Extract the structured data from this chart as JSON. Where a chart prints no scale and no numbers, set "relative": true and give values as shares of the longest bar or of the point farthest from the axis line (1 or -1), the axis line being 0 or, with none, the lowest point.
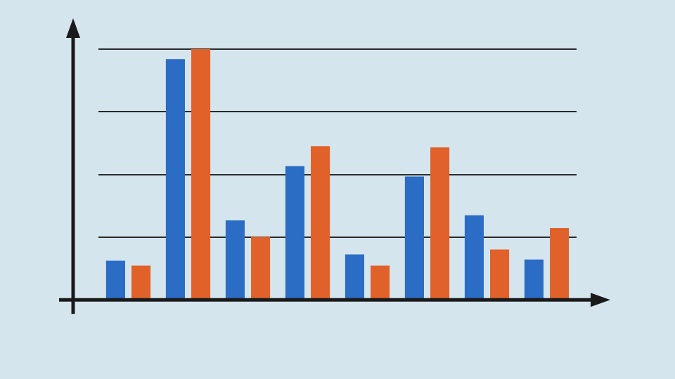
{
  "chart_data": {
    "type": "bar",
    "relative": true,
    "categories": [
      null,
      null,
      null,
      null,
      null,
      null,
      null,
      null
    ],
    "grid": "y",
    "legend": false,
    "series": [
      {
        "color": "#2b6cc4",
        "values": [
          0.156,
          0.96,
          0.317,
          0.533,
          0.181,
          0.492,
          0.337,
          0.161
        ]
      },
      {
        "color": "#e0622a",
        "values": [
          0.136,
          1,
          0.251,
          0.613,
          0.136,
          0.608,
          0.201,
          0.286
        ]
      }
    ]
  }
}
